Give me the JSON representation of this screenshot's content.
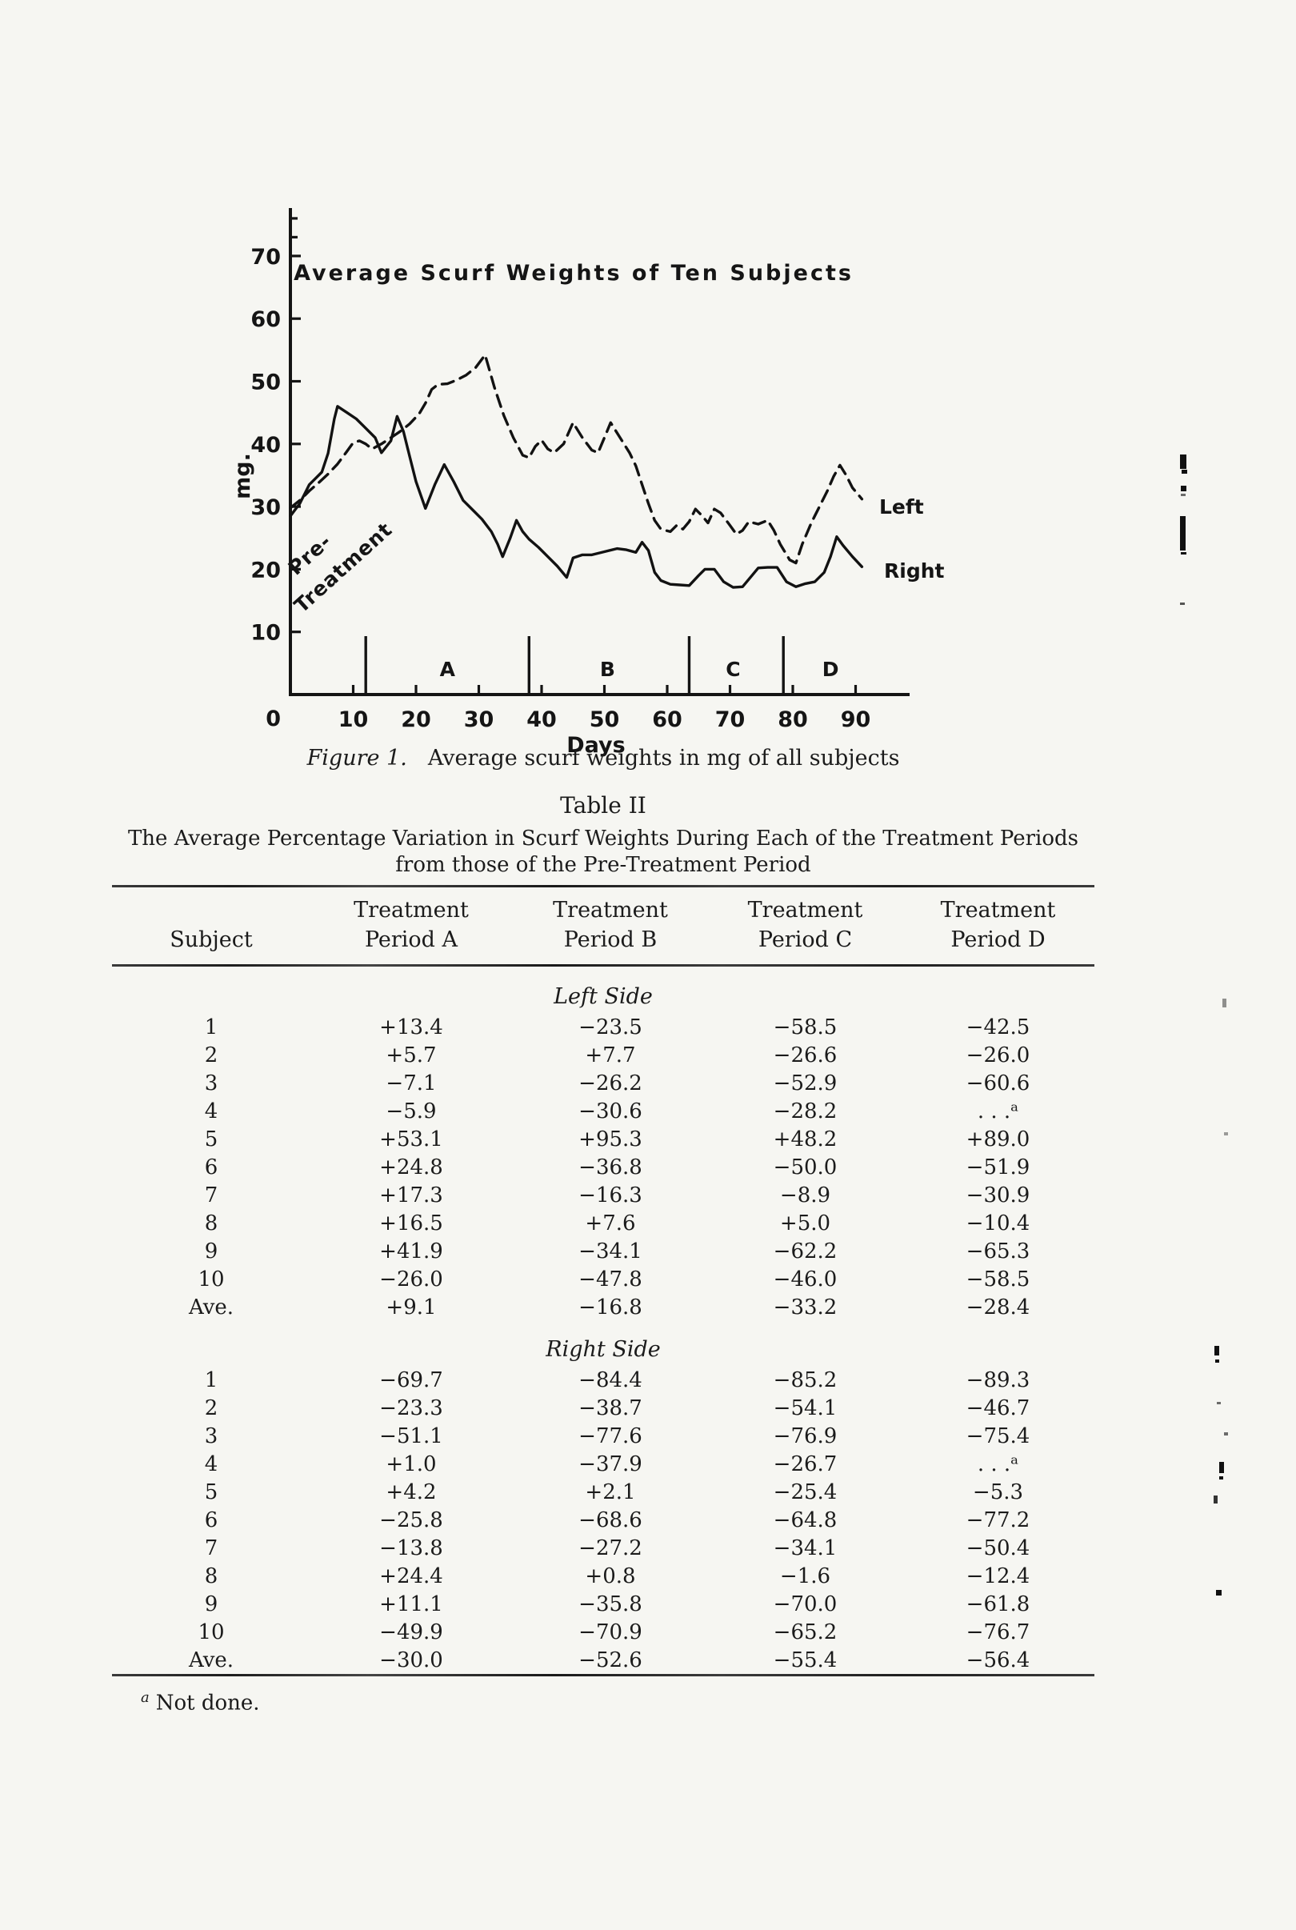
{
  "chart": {
    "title": "Average Scurf Weights of Ten Subjects",
    "y_axis_label": "mg.",
    "x_axis_label": "Days",
    "origin_label": "0",
    "pretreatment_label_line1": "Pre-",
    "pretreatment_label_line2": "Treatment",
    "series_labels": {
      "left": "Left",
      "right": "Right"
    },
    "period_labels": [
      "A",
      "B",
      "C",
      "D"
    ]
  },
  "chart_data": {
    "type": "line",
    "title": "Average Scurf Weights of Ten Subjects",
    "xlabel": "Days",
    "ylabel": "mg.",
    "xlim": [
      0,
      98
    ],
    "ylim": [
      0,
      77
    ],
    "x_ticks": [
      10,
      20,
      30,
      40,
      50,
      60,
      70,
      80,
      90
    ],
    "y_ticks": [
      10,
      20,
      30,
      40,
      50,
      60,
      70
    ],
    "grid": false,
    "legend_position": "end-of-line-labels",
    "period_divider_days": [
      12,
      38,
      63.5,
      78.5
    ],
    "period_label_days": [
      25,
      50.5,
      70.5,
      86
    ],
    "annotations": [
      "Pre-Treatment",
      "Left",
      "Right",
      "A",
      "B",
      "C",
      "D"
    ],
    "series": [
      {
        "name": "Left",
        "style": "dashed",
        "points": [
          [
            0,
            29.8
          ],
          [
            1.5,
            31
          ],
          [
            3,
            32.5
          ],
          [
            4.5,
            33.8
          ],
          [
            6,
            35.2
          ],
          [
            7.5,
            36.8
          ],
          [
            9,
            38.8
          ],
          [
            10,
            40.2
          ],
          [
            11,
            40.5
          ],
          [
            12,
            40
          ],
          [
            13,
            39.2
          ],
          [
            14.5,
            40
          ],
          [
            16,
            41
          ],
          [
            17.5,
            42
          ],
          [
            19,
            43.2
          ],
          [
            20.5,
            44.8
          ],
          [
            21.5,
            46.5
          ],
          [
            22.5,
            48.7
          ],
          [
            23.5,
            49.5
          ],
          [
            25,
            49.6
          ],
          [
            26.5,
            50.2
          ],
          [
            28,
            51
          ],
          [
            29.5,
            52.2
          ],
          [
            31,
            54.2
          ],
          [
            32.5,
            49
          ],
          [
            34,
            44.5
          ],
          [
            35.5,
            41
          ],
          [
            37,
            38.2
          ],
          [
            38,
            37.8
          ],
          [
            39,
            39.6
          ],
          [
            40,
            40.6
          ],
          [
            41,
            39.2
          ],
          [
            42,
            38.6
          ],
          [
            43.5,
            40
          ],
          [
            45,
            43.4
          ],
          [
            46.5,
            41
          ],
          [
            48,
            39
          ],
          [
            49,
            38.6
          ],
          [
            50,
            41
          ],
          [
            51,
            43.4
          ],
          [
            52.5,
            41
          ],
          [
            54,
            38.6
          ],
          [
            55,
            36.5
          ],
          [
            56,
            33.5
          ],
          [
            57,
            30.5
          ],
          [
            58,
            27.8
          ],
          [
            59,
            26.4
          ],
          [
            60.5,
            26
          ],
          [
            61.5,
            27
          ],
          [
            62.5,
            26.4
          ],
          [
            63.5,
            27.6
          ],
          [
            64.5,
            29.6
          ],
          [
            65.5,
            28.6
          ],
          [
            66.5,
            27.4
          ],
          [
            67.5,
            29.6
          ],
          [
            68.5,
            29
          ],
          [
            70,
            27
          ],
          [
            71,
            25.6
          ],
          [
            72,
            26.2
          ],
          [
            73,
            27.6
          ],
          [
            74.5,
            27.2
          ],
          [
            76,
            27.8
          ],
          [
            77,
            26.2
          ],
          [
            78,
            24
          ],
          [
            79.5,
            21.5
          ],
          [
            80.5,
            21
          ],
          [
            81.5,
            24
          ],
          [
            83,
            27.5
          ],
          [
            84.5,
            30.5
          ],
          [
            85.5,
            32.5
          ],
          [
            86.5,
            34.8
          ],
          [
            87.5,
            36.6
          ],
          [
            88.5,
            35
          ],
          [
            89.5,
            33
          ],
          [
            91,
            31.2
          ]
        ]
      },
      {
        "name": "Right",
        "style": "solid",
        "points": [
          [
            0,
            28.5
          ],
          [
            1.5,
            30.5
          ],
          [
            3,
            33.5
          ],
          [
            4,
            34.5
          ],
          [
            5,
            35.5
          ],
          [
            6,
            38.5
          ],
          [
            7,
            44
          ],
          [
            7.5,
            46
          ],
          [
            9,
            45
          ],
          [
            10.5,
            44
          ],
          [
            12,
            42.5
          ],
          [
            13.5,
            41
          ],
          [
            14.5,
            38.6
          ],
          [
            16,
            40.5
          ],
          [
            17,
            44.4
          ],
          [
            18,
            42
          ],
          [
            19,
            38
          ],
          [
            20,
            34
          ],
          [
            21.5,
            29.7
          ],
          [
            23,
            33.5
          ],
          [
            24.5,
            36.7
          ],
          [
            26,
            34
          ],
          [
            27.5,
            31
          ],
          [
            29,
            29.5
          ],
          [
            30.5,
            28
          ],
          [
            32,
            26
          ],
          [
            33,
            24
          ],
          [
            33.8,
            22
          ],
          [
            35,
            25
          ],
          [
            36,
            27.8
          ],
          [
            37,
            26
          ],
          [
            38,
            24.8
          ],
          [
            39.5,
            23.5
          ],
          [
            41,
            22
          ],
          [
            42.5,
            20.5
          ],
          [
            44,
            18.7
          ],
          [
            45,
            21.8
          ],
          [
            46.5,
            22.3
          ],
          [
            48,
            22.3
          ],
          [
            50,
            22.8
          ],
          [
            52,
            23.3
          ],
          [
            53.5,
            23.1
          ],
          [
            55,
            22.7
          ],
          [
            56,
            24.3
          ],
          [
            57,
            23
          ],
          [
            58,
            19.5
          ],
          [
            59,
            18.2
          ],
          [
            60.5,
            17.6
          ],
          [
            62,
            17.5
          ],
          [
            63.5,
            17.4
          ],
          [
            65,
            19
          ],
          [
            66,
            20
          ],
          [
            67.5,
            20
          ],
          [
            69,
            18
          ],
          [
            70.5,
            17.1
          ],
          [
            72,
            17.2
          ],
          [
            73.5,
            19
          ],
          [
            74.5,
            20.2
          ],
          [
            76,
            20.3
          ],
          [
            77.5,
            20.3
          ],
          [
            79,
            18
          ],
          [
            80.5,
            17.2
          ],
          [
            82,
            17.7
          ],
          [
            83.5,
            18
          ],
          [
            85,
            19.5
          ],
          [
            86,
            22
          ],
          [
            87,
            25.2
          ],
          [
            88,
            23.8
          ],
          [
            89.5,
            22
          ],
          [
            91,
            20.4
          ]
        ]
      }
    ]
  },
  "figure": {
    "label": "Figure 1.",
    "text": "Average scurf weights in mg of all subjects"
  },
  "table": {
    "heading": "Table II",
    "title_line1": "The Average Percentage Variation in Scurf Weights During Each of the Treatment Periods",
    "title_line2": "from those of the Pre-Treatment Period",
    "header_top": [
      "",
      "Treatment",
      "Treatment",
      "Treatment",
      "Treatment"
    ],
    "header_bottom": [
      "Subject",
      "Period A",
      "Period B",
      "Period C",
      "Period D"
    ],
    "sections": [
      {
        "label": "Left Side",
        "rows": [
          [
            "1",
            "+13.4",
            "−23.5",
            "−58.5",
            "−42.5"
          ],
          [
            "2",
            "+5.7",
            "+7.7",
            "−26.6",
            "−26.0"
          ],
          [
            "3",
            "−7.1",
            "−26.2",
            "−52.9",
            "−60.6"
          ],
          [
            "4",
            "−5.9",
            "−30.6",
            "−28.2",
            ". . .ᵃ"
          ],
          [
            "5",
            "+53.1",
            "+95.3",
            "+48.2",
            "+89.0"
          ],
          [
            "6",
            "+24.8",
            "−36.8",
            "−50.0",
            "−51.9"
          ],
          [
            "7",
            "+17.3",
            "−16.3",
            "−8.9",
            "−30.9"
          ],
          [
            "8",
            "+16.5",
            "+7.6",
            "+5.0",
            "−10.4"
          ],
          [
            "9",
            "+41.9",
            "−34.1",
            "−62.2",
            "−65.3"
          ],
          [
            "10",
            "−26.0",
            "−47.8",
            "−46.0",
            "−58.5"
          ],
          [
            "Ave.",
            "+9.1",
            "−16.8",
            "−33.2",
            "−28.4"
          ]
        ]
      },
      {
        "label": "Right Side",
        "rows": [
          [
            "1",
            "−69.7",
            "−84.4",
            "−85.2",
            "−89.3"
          ],
          [
            "2",
            "−23.3",
            "−38.7",
            "−54.1",
            "−46.7"
          ],
          [
            "3",
            "−51.1",
            "−77.6",
            "−76.9",
            "−75.4"
          ],
          [
            "4",
            "+1.0",
            "−37.9",
            "−26.7",
            ". . .ᵃ"
          ],
          [
            "5",
            "+4.2",
            "+2.1",
            "−25.4",
            "−5.3"
          ],
          [
            "6",
            "−25.8",
            "−68.6",
            "−64.8",
            "−77.2"
          ],
          [
            "7",
            "−13.8",
            "−27.2",
            "−34.1",
            "−50.4"
          ],
          [
            "8",
            "+24.4",
            "+0.8",
            "−1.6",
            "−12.4"
          ],
          [
            "9",
            "+11.1",
            "−35.8",
            "−70.0",
            "−61.8"
          ],
          [
            "10",
            "−49.9",
            "−70.9",
            "−65.2",
            "−76.7"
          ],
          [
            "Ave.",
            "−30.0",
            "−52.6",
            "−55.4",
            "−56.4"
          ]
        ]
      }
    ],
    "footnote_marker": "a",
    "footnote_text": "Not done."
  }
}
